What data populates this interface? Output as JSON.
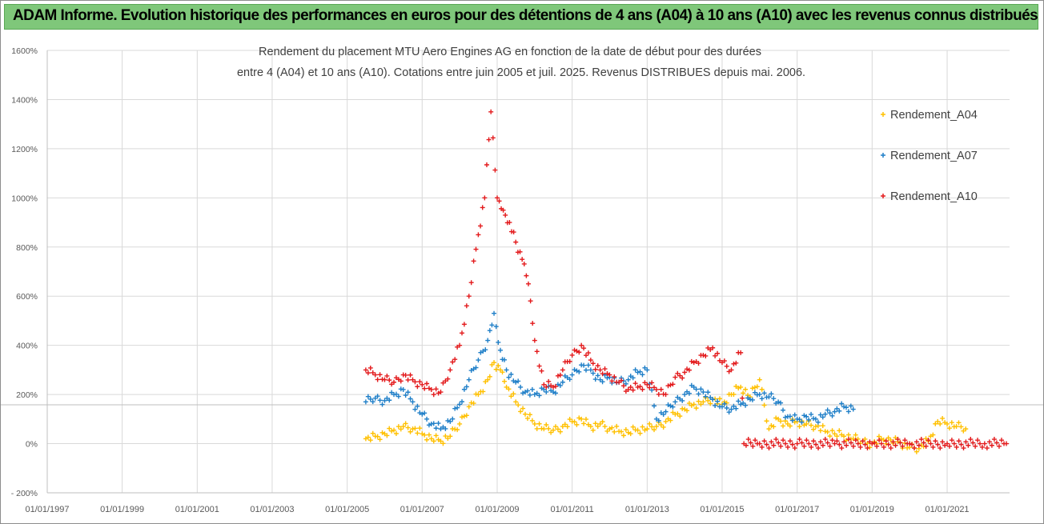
{
  "banner": {
    "title": "ADAM Informe. Evolution historique des performances en euros pour des détentions de 4 ans (A04) à 10 ans (A10) avec les revenus connus distribués",
    "color": "#7fc77a"
  },
  "chart_data": {
    "type": "scatter",
    "title_lines": [
      "Rendement du placement MTU Aero Engines AG en fonction de la date de début pour des durées",
      "entre 4 (A04) et 10 ans (A10). Cotations entre juin 2005 et juil. 2025. Revenus DISTRIBUES depuis mai. 2006."
    ],
    "xlabel": "",
    "ylabel": "",
    "x_ticks": [
      "01/01/1997",
      "01/01/1999",
      "01/01/2001",
      "01/01/2003",
      "01/01/2005",
      "01/01/2007",
      "01/01/2009",
      "01/01/2011",
      "01/01/2013",
      "01/01/2015",
      "01/01/2017",
      "01/01/2019",
      "01/01/2021"
    ],
    "xlim": [
      "1997-01-01",
      "2022-09-01"
    ],
    "y_ticks": [
      "- 200%",
      "0%",
      "200%",
      "400%",
      "600%",
      "800%",
      "1000%",
      "1200%",
      "1400%",
      "1600%"
    ],
    "ylim": [
      -200,
      1600
    ],
    "y_unit": "%",
    "grid": true,
    "marker": "+",
    "legend_position": "right",
    "series": [
      {
        "name": "Rendement_A04",
        "color": "#ffc000",
        "points": [
          [
            "2005-07-01",
            20
          ],
          [
            "2005-10-01",
            30
          ],
          [
            "2006-01-01",
            40
          ],
          [
            "2006-04-01",
            55
          ],
          [
            "2006-07-01",
            70
          ],
          [
            "2006-10-01",
            60
          ],
          [
            "2007-01-01",
            40
          ],
          [
            "2007-04-01",
            20
          ],
          [
            "2007-07-01",
            10
          ],
          [
            "2007-10-01",
            30
          ],
          [
            "2008-01-01",
            80
          ],
          [
            "2008-04-01",
            150
          ],
          [
            "2008-07-01",
            200
          ],
          [
            "2008-10-01",
            260
          ],
          [
            "2008-12-01",
            330
          ],
          [
            "2009-02-01",
            300
          ],
          [
            "2009-04-01",
            230
          ],
          [
            "2009-07-01",
            170
          ],
          [
            "2009-10-01",
            120
          ],
          [
            "2010-01-01",
            80
          ],
          [
            "2010-04-01",
            60
          ],
          [
            "2010-07-01",
            55
          ],
          [
            "2010-10-01",
            70
          ],
          [
            "2011-01-01",
            90
          ],
          [
            "2011-04-01",
            100
          ],
          [
            "2011-07-01",
            70
          ],
          [
            "2011-10-01",
            80
          ],
          [
            "2012-01-01",
            60
          ],
          [
            "2012-04-01",
            50
          ],
          [
            "2012-07-01",
            45
          ],
          [
            "2012-10-01",
            55
          ],
          [
            "2013-01-01",
            60
          ],
          [
            "2013-04-01",
            70
          ],
          [
            "2013-07-01",
            90
          ],
          [
            "2013-10-01",
            120
          ],
          [
            "2014-01-01",
            140
          ],
          [
            "2014-04-01",
            160
          ],
          [
            "2014-07-01",
            170
          ],
          [
            "2014-10-01",
            180
          ],
          [
            "2015-01-01",
            160
          ],
          [
            "2015-04-01",
            200
          ],
          [
            "2015-07-01",
            230
          ],
          [
            "2015-10-01",
            190
          ],
          [
            "2016-01-01",
            260
          ],
          [
            "2016-04-01",
            60
          ],
          [
            "2016-07-01",
            100
          ],
          [
            "2016-10-01",
            80
          ],
          [
            "2017-01-01",
            90
          ],
          [
            "2017-04-01",
            80
          ],
          [
            "2017-07-01",
            70
          ],
          [
            "2017-10-01",
            50
          ],
          [
            "2018-01-01",
            40
          ],
          [
            "2018-04-01",
            30
          ],
          [
            "2018-07-01",
            20
          ],
          [
            "2018-10-01",
            10
          ],
          [
            "2019-01-01",
            0
          ],
          [
            "2019-04-01",
            20
          ],
          [
            "2019-07-01",
            15
          ],
          [
            "2019-10-01",
            5
          ],
          [
            "2020-01-01",
            -15
          ],
          [
            "2020-04-01",
            -20
          ],
          [
            "2020-07-01",
            10
          ],
          [
            "2020-10-01",
            90
          ],
          [
            "2021-01-01",
            80
          ],
          [
            "2021-04-01",
            70
          ],
          [
            "2021-07-01",
            60
          ]
        ]
      },
      {
        "name": "Rendement_A07",
        "color": "#1f7fc8",
        "points": [
          [
            "2005-07-01",
            170
          ],
          [
            "2005-10-01",
            185
          ],
          [
            "2006-01-01",
            175
          ],
          [
            "2006-04-01",
            200
          ],
          [
            "2006-07-01",
            220
          ],
          [
            "2006-10-01",
            170
          ],
          [
            "2007-01-01",
            120
          ],
          [
            "2007-04-01",
            80
          ],
          [
            "2007-07-01",
            60
          ],
          [
            "2007-10-01",
            90
          ],
          [
            "2008-01-01",
            160
          ],
          [
            "2008-04-01",
            260
          ],
          [
            "2008-07-01",
            340
          ],
          [
            "2008-10-01",
            420
          ],
          [
            "2008-12-01",
            530
          ],
          [
            "2009-02-01",
            380
          ],
          [
            "2009-04-01",
            300
          ],
          [
            "2009-07-01",
            250
          ],
          [
            "2009-10-01",
            210
          ],
          [
            "2010-01-01",
            200
          ],
          [
            "2010-04-01",
            220
          ],
          [
            "2010-07-01",
            210
          ],
          [
            "2010-10-01",
            250
          ],
          [
            "2011-01-01",
            280
          ],
          [
            "2011-04-01",
            320
          ],
          [
            "2011-07-01",
            300
          ],
          [
            "2011-10-01",
            260
          ],
          [
            "2012-01-01",
            270
          ],
          [
            "2012-04-01",
            250
          ],
          [
            "2012-07-01",
            260
          ],
          [
            "2012-10-01",
            290
          ],
          [
            "2013-01-01",
            300
          ],
          [
            "2013-04-01",
            100
          ],
          [
            "2013-07-01",
            130
          ],
          [
            "2013-10-01",
            170
          ],
          [
            "2014-01-01",
            200
          ],
          [
            "2014-04-01",
            230
          ],
          [
            "2014-07-01",
            210
          ],
          [
            "2014-10-01",
            180
          ],
          [
            "2015-01-01",
            150
          ],
          [
            "2015-04-01",
            140
          ],
          [
            "2015-07-01",
            160
          ],
          [
            "2015-10-01",
            180
          ],
          [
            "2016-01-01",
            200
          ],
          [
            "2016-04-01",
            190
          ],
          [
            "2016-07-01",
            170
          ],
          [
            "2016-10-01",
            110
          ],
          [
            "2017-01-01",
            100
          ],
          [
            "2017-04-01",
            110
          ],
          [
            "2017-07-01",
            100
          ],
          [
            "2017-10-01",
            120
          ],
          [
            "2018-01-01",
            130
          ],
          [
            "2018-04-01",
            150
          ],
          [
            "2018-07-01",
            140
          ]
        ]
      },
      {
        "name": "Rendement_A10",
        "color": "#e31a1c",
        "points": [
          [
            "2005-07-01",
            300
          ],
          [
            "2005-10-01",
            280
          ],
          [
            "2006-01-01",
            260
          ],
          [
            "2006-04-01",
            250
          ],
          [
            "2006-07-01",
            280
          ],
          [
            "2006-10-01",
            260
          ],
          [
            "2007-01-01",
            240
          ],
          [
            "2007-04-01",
            220
          ],
          [
            "2007-07-01",
            210
          ],
          [
            "2007-10-01",
            300
          ],
          [
            "2008-01-01",
            400
          ],
          [
            "2008-04-01",
            600
          ],
          [
            "2008-07-01",
            850
          ],
          [
            "2008-09-01",
            1000
          ],
          [
            "2008-11-01",
            1350
          ],
          [
            "2009-01-01",
            1000
          ],
          [
            "2009-03-01",
            950
          ],
          [
            "2009-05-01",
            900
          ],
          [
            "2009-07-01",
            820
          ],
          [
            "2009-09-01",
            750
          ],
          [
            "2009-11-01",
            650
          ],
          [
            "2010-01-01",
            420
          ],
          [
            "2010-04-01",
            240
          ],
          [
            "2010-07-01",
            230
          ],
          [
            "2010-10-01",
            300
          ],
          [
            "2011-01-01",
            360
          ],
          [
            "2011-04-01",
            400
          ],
          [
            "2011-07-01",
            340
          ],
          [
            "2011-10-01",
            300
          ],
          [
            "2012-01-01",
            280
          ],
          [
            "2012-04-01",
            250
          ],
          [
            "2012-07-01",
            220
          ],
          [
            "2012-10-01",
            230
          ],
          [
            "2013-01-01",
            240
          ],
          [
            "2013-04-01",
            220
          ],
          [
            "2013-07-01",
            200
          ],
          [
            "2013-10-01",
            270
          ],
          [
            "2014-01-01",
            290
          ],
          [
            "2014-04-01",
            330
          ],
          [
            "2014-07-01",
            360
          ],
          [
            "2014-10-01",
            390
          ],
          [
            "2015-01-01",
            330
          ],
          [
            "2015-04-01",
            300
          ],
          [
            "2015-07-01",
            370
          ],
          [
            "2015-08-01",
            0
          ],
          [
            "2016-01-01",
            0
          ],
          [
            "2017-01-01",
            0
          ],
          [
            "2018-01-01",
            0
          ],
          [
            "2019-01-01",
            0
          ],
          [
            "2020-01-01",
            0
          ],
          [
            "2021-01-01",
            0
          ],
          [
            "2022-01-01",
            0
          ],
          [
            "2022-08-01",
            0
          ]
        ]
      }
    ]
  }
}
